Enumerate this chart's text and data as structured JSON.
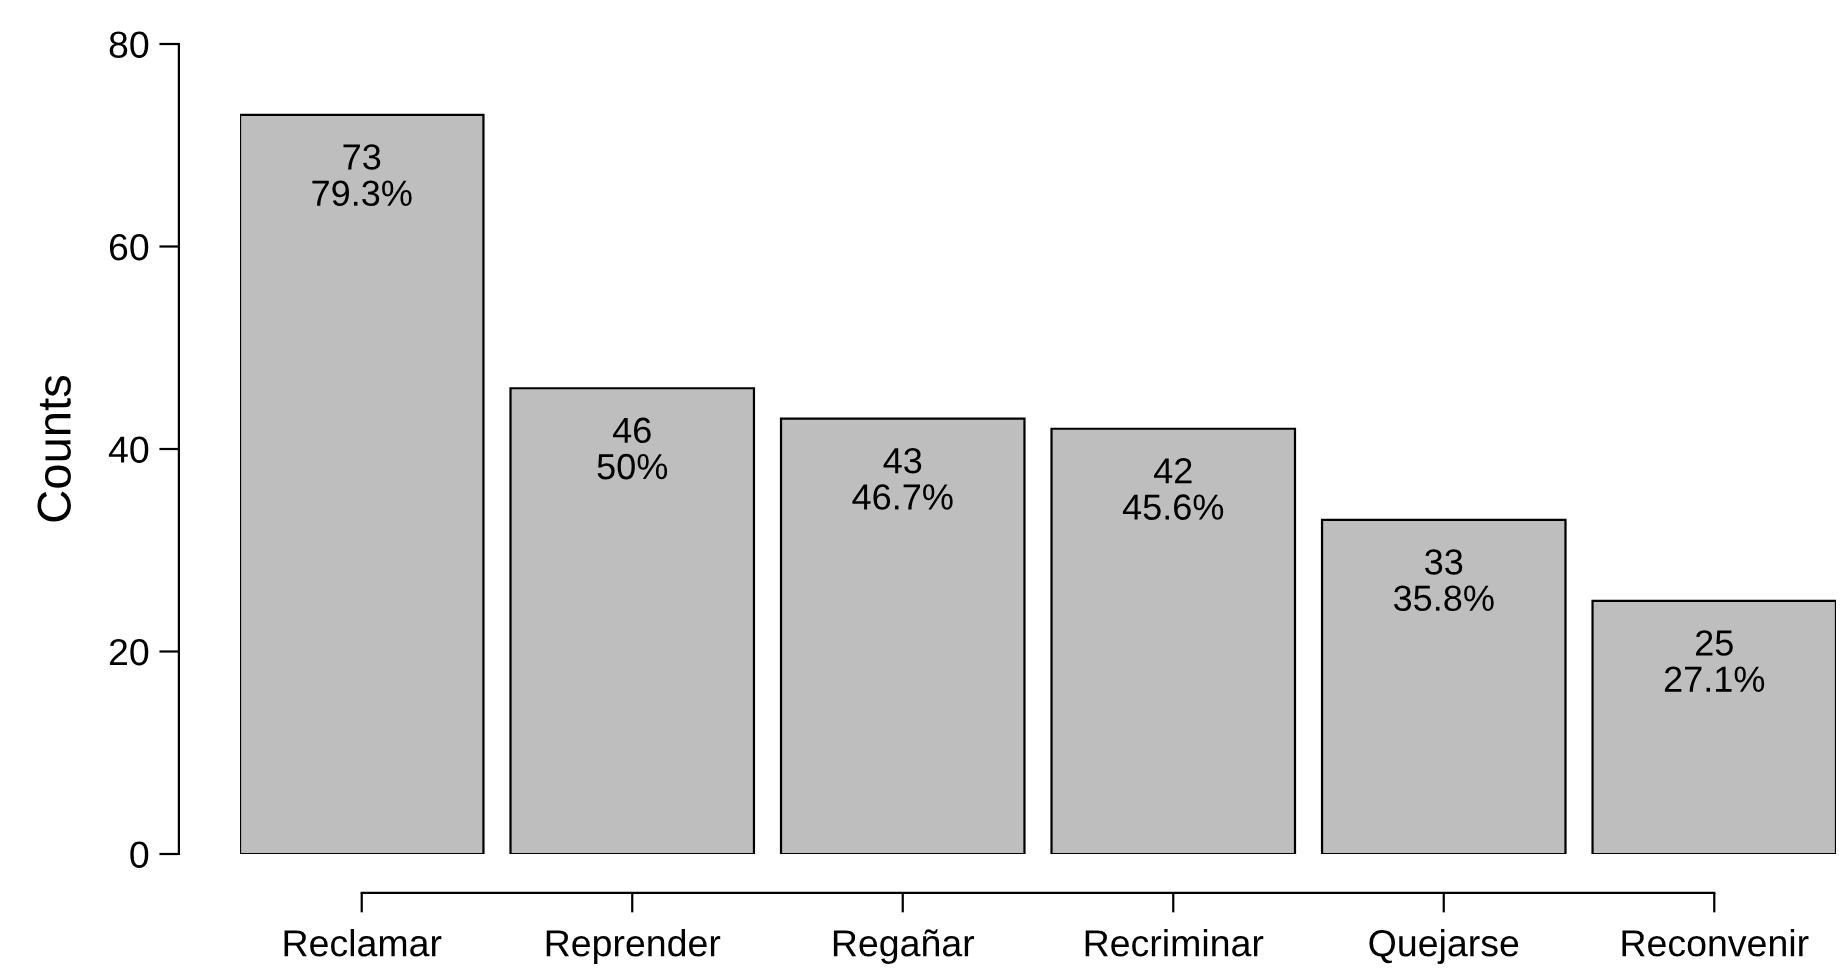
{
  "chart_data": {
    "type": "bar",
    "ylabel": "Counts",
    "categories": [
      "Reclamar",
      "Reprender",
      "Regañar",
      "Recriminar",
      "Quejarse",
      "Reconvenir"
    ],
    "values": [
      73,
      46,
      43,
      42,
      33,
      25
    ],
    "value_labels": [
      "73\n79.3%",
      "46\n50%",
      "43\n46.7%",
      "42\n45.6%",
      "33\n35.8%",
      "25\n27.1%"
    ],
    "color": "#bebebe",
    "ylim": [
      0,
      80
    ],
    "yticks": [
      0,
      20,
      40,
      60,
      80
    ],
    "grid": false,
    "legend": false
  }
}
